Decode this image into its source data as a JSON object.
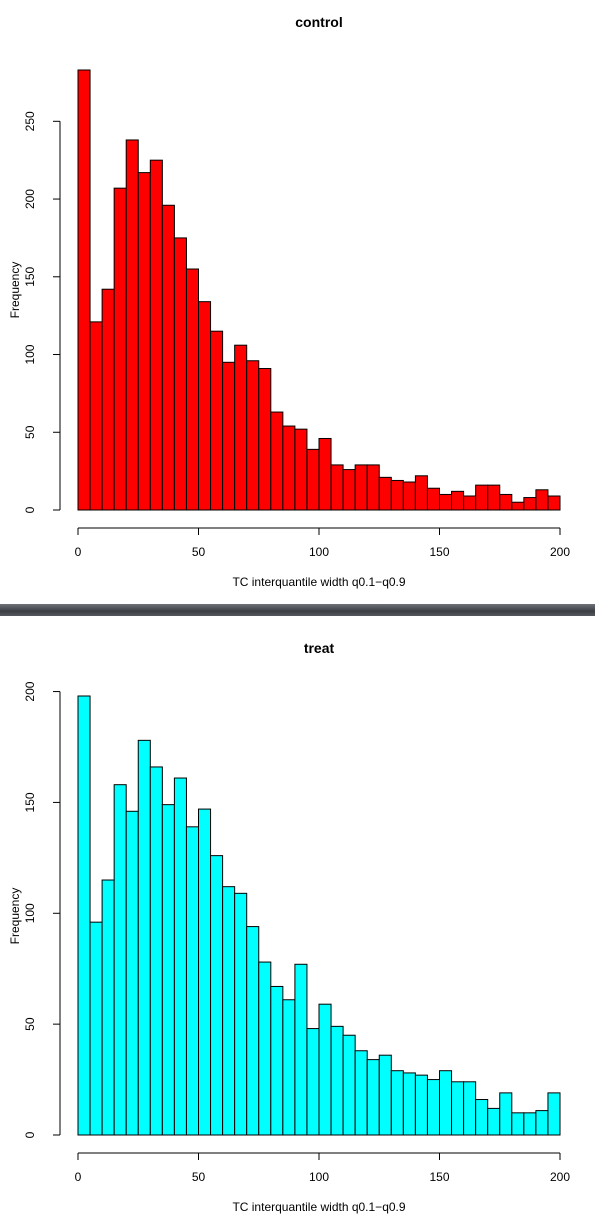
{
  "chart_data": [
    {
      "type": "bar",
      "title": "control",
      "xlabel": "TC interquantile width q0.1−q0.9",
      "ylabel": "Frequency",
      "bin_width": 5,
      "xlim": [
        0,
        200
      ],
      "ylim": [
        0,
        283
      ],
      "x_ticks": [
        "0",
        "50",
        "100",
        "150",
        "200"
      ],
      "y_ticks": [
        "0",
        "50",
        "100",
        "150",
        "200",
        "250"
      ],
      "bin_starts": [
        0,
        5,
        10,
        15,
        20,
        25,
        30,
        35,
        40,
        45,
        50,
        55,
        60,
        65,
        70,
        75,
        80,
        85,
        90,
        95,
        100,
        105,
        110,
        115,
        120,
        125,
        130,
        135,
        140,
        145,
        150,
        155,
        160,
        165,
        170,
        175,
        180,
        185,
        190,
        195
      ],
      "values": [
        283,
        121,
        142,
        207,
        238,
        217,
        225,
        196,
        175,
        155,
        134,
        115,
        95,
        106,
        96,
        91,
        63,
        54,
        52,
        39,
        46,
        29,
        26,
        29,
        29,
        21,
        19,
        18,
        22,
        14,
        10,
        12,
        9,
        16,
        16,
        10,
        5,
        8,
        13,
        9
      ],
      "fill": "#ff0000",
      "grid": false,
      "legend": "none"
    },
    {
      "type": "bar",
      "title": "treat",
      "xlabel": "TC interquantile width q0.1−q0.9",
      "ylabel": "Frequency",
      "bin_width": 5,
      "xlim": [
        0,
        200
      ],
      "ylim": [
        0,
        198
      ],
      "x_ticks": [
        "0",
        "50",
        "100",
        "150",
        "200"
      ],
      "y_ticks": [
        "0",
        "50",
        "100",
        "150",
        "200"
      ],
      "bin_starts": [
        0,
        5,
        10,
        15,
        20,
        25,
        30,
        35,
        40,
        45,
        50,
        55,
        60,
        65,
        70,
        75,
        80,
        85,
        90,
        95,
        100,
        105,
        110,
        115,
        120,
        125,
        130,
        135,
        140,
        145,
        150,
        155,
        160,
        165,
        170,
        175,
        180,
        185,
        190,
        195
      ],
      "values": [
        198,
        96,
        115,
        158,
        146,
        178,
        166,
        149,
        161,
        139,
        147,
        126,
        112,
        109,
        94,
        78,
        67,
        61,
        77,
        48,
        59,
        49,
        45,
        38,
        34,
        36,
        29,
        28,
        27,
        25,
        29,
        24,
        24,
        16,
        12,
        19,
        10,
        10,
        11,
        19
      ],
      "fill": "#00ffff",
      "grid": false,
      "legend": "none"
    }
  ]
}
